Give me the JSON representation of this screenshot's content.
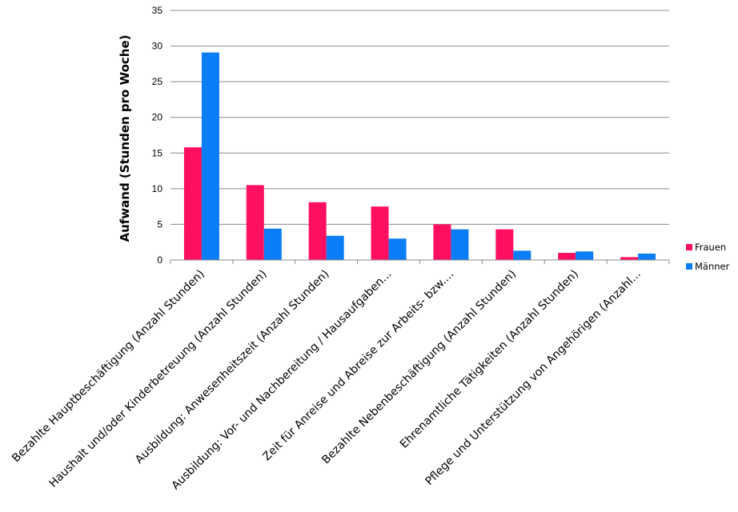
{
  "chart_data": {
    "type": "bar",
    "title": "",
    "xlabel": "",
    "ylabel": "Aufwand (Stunden pro Woche)",
    "ylim": [
      0,
      35
    ],
    "yticks": [
      0,
      5,
      10,
      15,
      20,
      25,
      30,
      35
    ],
    "grid": true,
    "legend": "right",
    "categories": [
      "Bezahlte Hauptbeschäftigung (Anzahl Stunden)",
      "Haushalt und/oder Kinderbetreuung (Anzahl Stunden)",
      "Ausbildung: Anwesenheitszeit (Anzahl Stunden)",
      "Ausbildung: Vor- und Nachbereitung / Hausaufgaben...",
      "Zeit für Anreise und Abreise zur Arbeits- bzw....",
      "Bezahlte Nebenbeschäftigung (Anzahl Stunden)",
      "Ehrenamtliche Tätigkeiten (Anzahl Stunden)",
      "Pflege und Unterstützung von Angehörigen (Anzahl..."
    ],
    "series": [
      {
        "name": "Frauen",
        "color": "#ff0f5f",
        "values": [
          15.8,
          10.5,
          8.1,
          7.5,
          5.0,
          4.3,
          1.0,
          0.4
        ]
      },
      {
        "name": "Männer",
        "color": "#0a7df7",
        "values": [
          29.1,
          4.4,
          3.4,
          3.0,
          4.3,
          1.3,
          1.2,
          0.9
        ]
      }
    ]
  }
}
